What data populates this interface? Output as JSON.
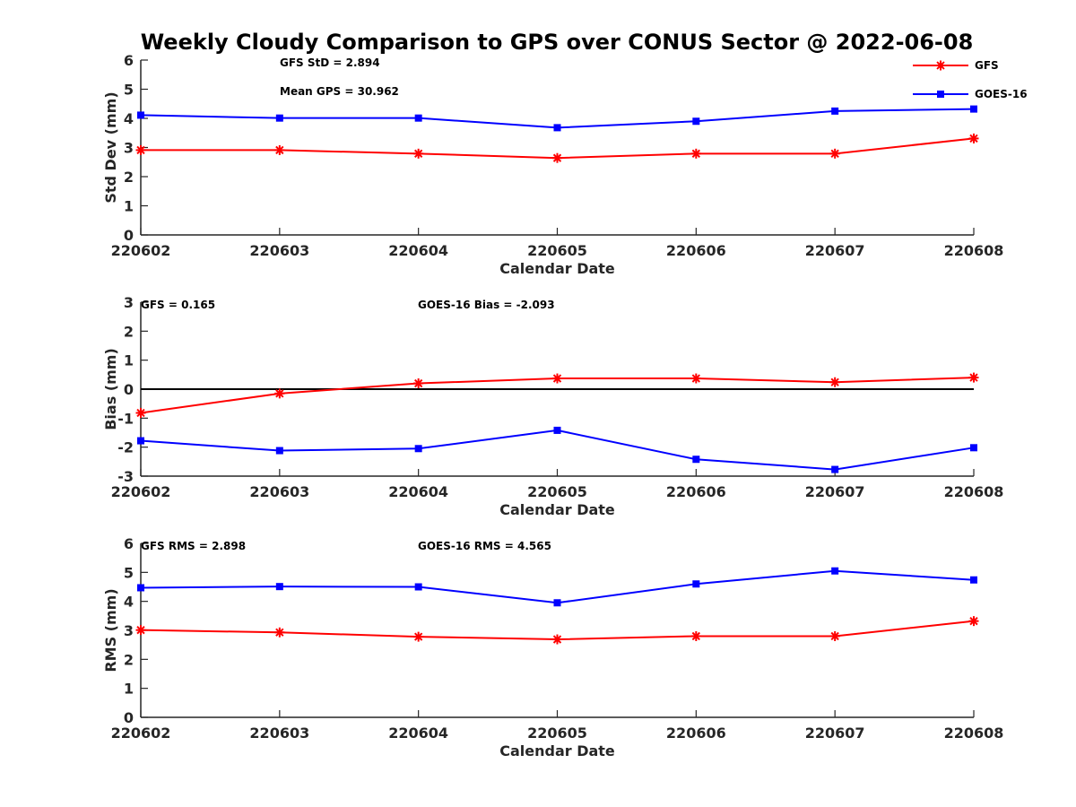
{
  "title": "Weekly Cloudy Comparison to GPS over CONUS Sector @ 2022-06-08",
  "colors": {
    "GFS": "#ff0000",
    "GOES-16": "#0000ff",
    "axis": "#262626",
    "zero_line": "#000000"
  },
  "legend": {
    "position": "top-right",
    "items": [
      {
        "label": "GFS",
        "marker": "star"
      },
      {
        "label": "GOES-16",
        "marker": "square"
      }
    ]
  },
  "chart_data": [
    {
      "type": "line",
      "xlabel": "Calendar Date",
      "ylabel": "Std Dev (mm)",
      "categories": [
        "220602",
        "220603",
        "220604",
        "220605",
        "220606",
        "220607",
        "220608"
      ],
      "ylim": [
        0,
        6
      ],
      "yticks": [
        "0",
        "1",
        "2",
        "3",
        "4",
        "5",
        "6"
      ],
      "zero_line": false,
      "annotations": [
        "GFS StD = 2.894",
        "Mean GPS = 30.962"
      ],
      "series": [
        {
          "name": "GFS",
          "marker": "star",
          "values": [
            2.91,
            2.91,
            2.79,
            2.64,
            2.79,
            2.79,
            3.31
          ]
        },
        {
          "name": "GOES-16",
          "marker": "square",
          "values": [
            4.11,
            4.01,
            4.01,
            3.68,
            3.9,
            4.25,
            4.32
          ]
        }
      ]
    },
    {
      "type": "line",
      "xlabel": "Calendar Date",
      "ylabel": "Bias (mm)",
      "categories": [
        "220602",
        "220603",
        "220604",
        "220605",
        "220606",
        "220607",
        "220608"
      ],
      "ylim": [
        -3,
        3
      ],
      "yticks": [
        "-3",
        "-2",
        "-1",
        "0",
        "1",
        "2",
        "3"
      ],
      "zero_line": true,
      "annotations": [
        "GFS = 0.165",
        "GOES-16 Bias  = -2.093"
      ],
      "series": [
        {
          "name": "GFS",
          "marker": "star",
          "values": [
            -0.82,
            -0.15,
            0.2,
            0.37,
            0.37,
            0.24,
            0.4
          ]
        },
        {
          "name": "GOES-16",
          "marker": "square",
          "values": [
            -1.78,
            -2.12,
            -2.05,
            -1.42,
            -2.42,
            -2.77,
            -2.02
          ]
        }
      ]
    },
    {
      "type": "line",
      "xlabel": "Calendar Date",
      "ylabel": "RMS (mm)",
      "categories": [
        "220602",
        "220603",
        "220604",
        "220605",
        "220606",
        "220607",
        "220608"
      ],
      "ylim": [
        0,
        6
      ],
      "yticks": [
        "0",
        "1",
        "2",
        "3",
        "4",
        "5",
        "6"
      ],
      "zero_line": false,
      "annotations": [
        "GFS RMS = 2.898",
        "GOES-16 RMS = 4.565"
      ],
      "series": [
        {
          "name": "GFS",
          "marker": "star",
          "values": [
            3.01,
            2.93,
            2.78,
            2.69,
            2.8,
            2.8,
            3.32
          ]
        },
        {
          "name": "GOES-16",
          "marker": "square",
          "values": [
            4.47,
            4.51,
            4.5,
            3.95,
            4.6,
            5.05,
            4.74
          ]
        }
      ]
    }
  ]
}
